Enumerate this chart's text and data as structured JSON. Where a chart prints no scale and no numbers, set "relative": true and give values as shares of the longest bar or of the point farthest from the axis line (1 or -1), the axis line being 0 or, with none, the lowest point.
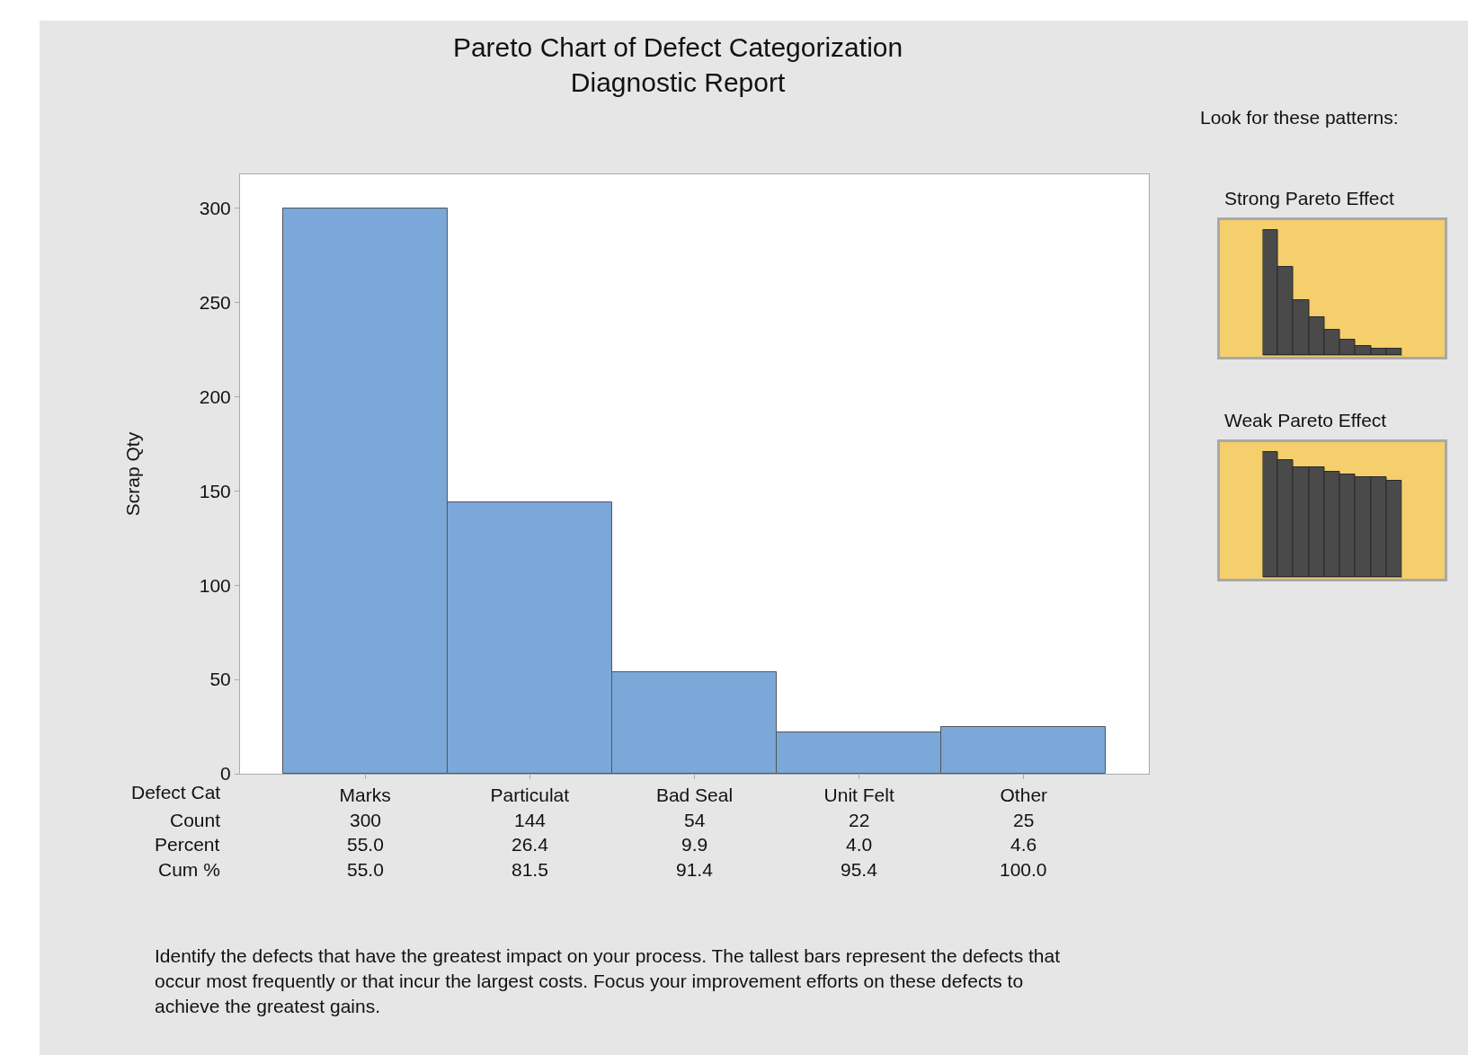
{
  "chart_data": [
    {
      "type": "bar",
      "title": "Pareto Chart of Defect Categorization",
      "subtitle": "Diagnostic Report",
      "ylabel": "Scrap Qty",
      "categories": [
        "Marks",
        "Particulat",
        "Bad Seal",
        "Unit Felt",
        "Other"
      ],
      "values": [
        300,
        144,
        54,
        22,
        25
      ],
      "color": "#7ba7d9",
      "ylim": [
        0,
        318
      ],
      "yticks": [
        0,
        50,
        100,
        150,
        200,
        250,
        300
      ],
      "grid": false,
      "data_labels": true,
      "annotations": [
        "Defect Cat",
        "Count",
        "Percent",
        "Cum %",
        "Identify the defects that have the greatest impact on your process. The tallest bars represent the defects that occur most frequently or that incur the largest costs. Focus your improvement efforts on these defects to achieve the greatest gains.",
        "55.0",
        "26.4",
        "9.9",
        "4.0",
        "4.6",
        "55.0",
        "81.5",
        "91.4",
        "95.4",
        "100.0"
      ]
    },
    {
      "type": "bar",
      "title": "Strong Pareto Effect",
      "annotations": [
        "Look for these patterns:"
      ],
      "relative": true,
      "categories": [
        null,
        null,
        null,
        null,
        null,
        null,
        null,
        null,
        null
      ],
      "values": [
        1,
        0.71,
        0.44,
        0.3,
        0.2,
        0.12,
        0.07,
        0.05,
        0.05
      ],
      "color": "#4a4a4a"
    },
    {
      "type": "bar",
      "title": "Weak Pareto Effect",
      "relative": true,
      "categories": [
        null,
        null,
        null,
        null,
        null,
        null,
        null,
        null,
        null
      ],
      "values": [
        1,
        0.94,
        0.88,
        0.88,
        0.84,
        0.82,
        0.8,
        0.8,
        0.77
      ],
      "color": "#4a4a4a"
    }
  ]
}
